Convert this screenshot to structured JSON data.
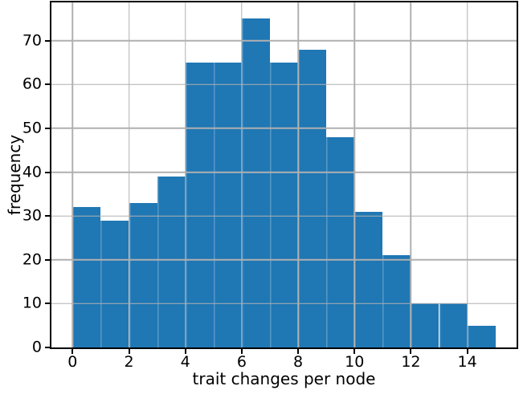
{
  "figure": {
    "background": "#ffffff"
  },
  "chart_data": {
    "type": "bar",
    "subtype": "histogram",
    "title": "",
    "xlabel": "trait changes per node",
    "ylabel": "frequency",
    "bin_edges": [
      0,
      1,
      2,
      3,
      4,
      5,
      6,
      7,
      8,
      9,
      10,
      11,
      12,
      13,
      14,
      15
    ],
    "frequencies": [
      32,
      29,
      33,
      39,
      65,
      65,
      75,
      65,
      68,
      48,
      31,
      21,
      10,
      10,
      5
    ],
    "x_ticks": [
      0,
      2,
      4,
      6,
      8,
      10,
      12,
      14
    ],
    "y_ticks": [
      0,
      10,
      20,
      30,
      40,
      50,
      60,
      70
    ],
    "xlim": [
      -0.75,
      15.75
    ],
    "ylim": [
      0,
      78.75
    ],
    "grid": "on",
    "grid_above_bars": true,
    "legend": "none",
    "bar_color": "#1f77b4",
    "grid_color": "#b0b0b0",
    "axis_color": "#000000",
    "text_color": "#000000"
  }
}
